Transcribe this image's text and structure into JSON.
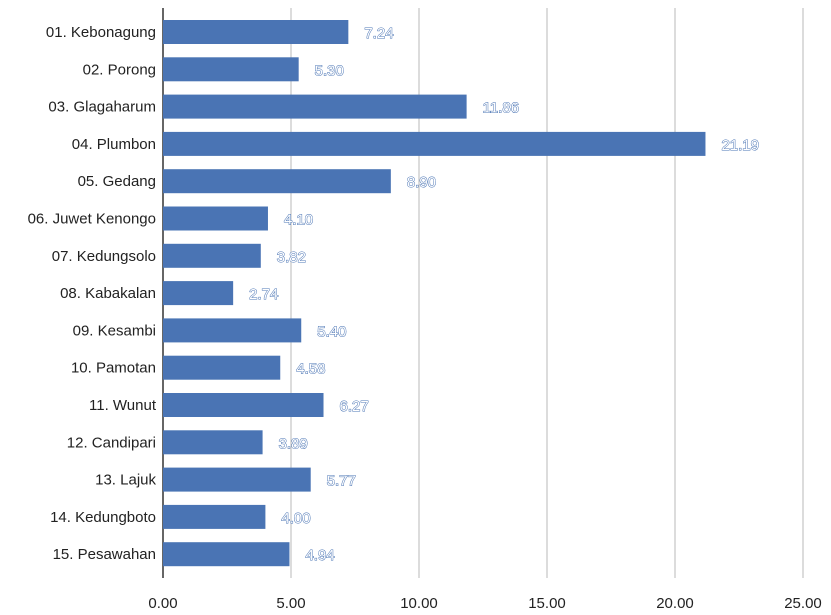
{
  "chart_data": {
    "type": "bar",
    "orientation": "horizontal",
    "categories": [
      "01. Kebonagung",
      "02. Porong",
      "03. Glagaharum",
      "04. Plumbon",
      "05. Gedang",
      "06. Juwet Kenongo",
      "07. Kedungsolo",
      "08. Kabakalan",
      "09. Kesambi",
      "10. Pamotan",
      "11. Wunut",
      "12. Candipari",
      "13. Lajuk",
      "14. Kedungboto",
      "15. Pesawahan"
    ],
    "values": [
      7.24,
      5.3,
      11.86,
      21.19,
      8.9,
      4.1,
      3.82,
      2.74,
      5.4,
      4.58,
      6.27,
      3.89,
      5.77,
      4.0,
      4.94
    ],
    "value_labels": [
      "7.24",
      "5.30",
      "11.86",
      "21.19",
      "8.90",
      "4.10",
      "3.82",
      "2.74",
      "5.40",
      "4.58",
      "6.27",
      "3.89",
      "5.77",
      "4.00",
      "4.94"
    ],
    "x_ticks": [
      "0.00",
      "5.00",
      "10.00",
      "15.00",
      "20.00",
      "25.00"
    ],
    "xlim": [
      0,
      25
    ],
    "title": "",
    "xlabel": "",
    "ylabel": "",
    "grid": "vertical",
    "legend": "none",
    "bar_color": "#4a74b4",
    "grid_color": "#c4c4c4"
  }
}
